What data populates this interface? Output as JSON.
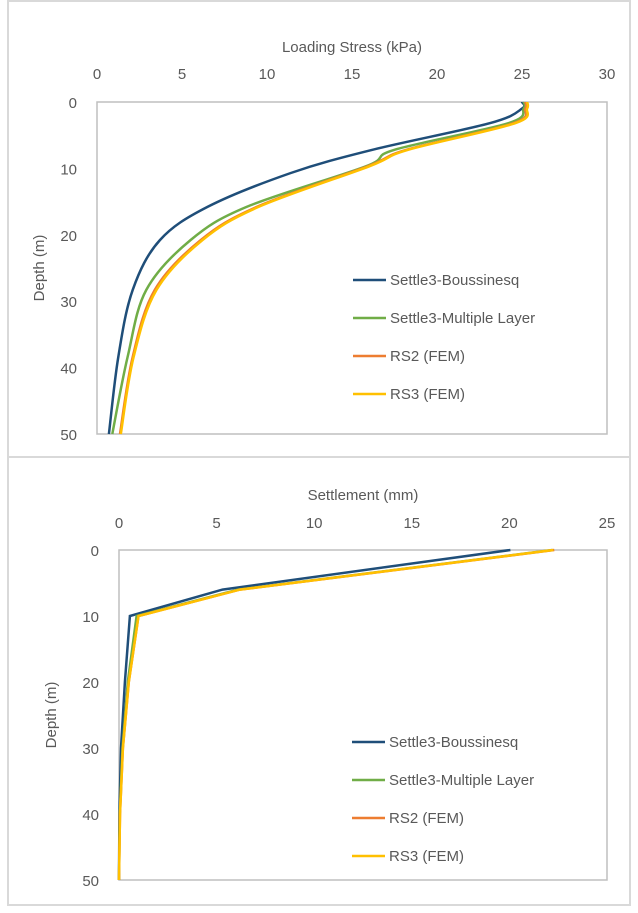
{
  "chart_data": [
    {
      "type": "line",
      "xlabel": "Loading Stress (kPa)",
      "ylabel": "Depth (m)",
      "xlim": [
        0,
        30
      ],
      "ylim": [
        0,
        50
      ],
      "x_axis_position": "top",
      "y_axis_reversed": true,
      "xticks": [
        0,
        5,
        10,
        15,
        20,
        25,
        30
      ],
      "yticks": [
        0,
        10,
        20,
        30,
        40,
        50
      ],
      "grid": false,
      "legend_position": "bottom-right",
      "series": [
        {
          "name": "Settle3-Boussinesq",
          "color": "#1f4e79",
          "points": [
            [
              25.0,
              0
            ],
            [
              25.0,
              1
            ],
            [
              23.1,
              3.2
            ],
            [
              16.2,
              7.2
            ],
            [
              11.4,
              10.7
            ],
            [
              6.5,
              15.8
            ],
            [
              3.7,
              20.8
            ],
            [
              2.1,
              28.3
            ],
            [
              1.25,
              38.4
            ],
            [
              0.7,
              50
            ]
          ]
        },
        {
          "name": "Settle3-Multiple Layer",
          "color": "#70ad47",
          "points": [
            [
              25.1,
              0
            ],
            [
              25.1,
              1
            ],
            [
              24.2,
              3.2
            ],
            [
              17.5,
              7.2
            ],
            [
              15.8,
              9.7
            ],
            [
              8.8,
              15.8
            ],
            [
              5.5,
              20.8
            ],
            [
              2.9,
              28.3
            ],
            [
              1.8,
              38.4
            ],
            [
              0.9,
              50
            ]
          ]
        },
        {
          "name": "RS2 (FEM)",
          "color": "#ed7d31",
          "points": [
            [
              25.2,
              0
            ],
            [
              25.2,
              1
            ],
            [
              24.5,
              3.2
            ],
            [
              18.2,
              7.2
            ],
            [
              15.9,
              9.7
            ],
            [
              9.4,
              15.8
            ],
            [
              6.1,
              20.8
            ],
            [
              3.4,
              28.3
            ],
            [
              2.1,
              38.4
            ],
            [
              1.35,
              50
            ]
          ]
        },
        {
          "name": "RS3 (FEM)",
          "color": "#ffc000",
          "points": [
            [
              25.3,
              0
            ],
            [
              25.3,
              1
            ],
            [
              24.6,
              3.2
            ],
            [
              18.3,
              7.2
            ],
            [
              16.0,
              9.7
            ],
            [
              9.5,
              15.8
            ],
            [
              6.2,
              20.8
            ],
            [
              3.5,
              28.3
            ],
            [
              2.15,
              38.4
            ],
            [
              1.4,
              50
            ]
          ]
        }
      ]
    },
    {
      "type": "line",
      "xlabel": "Settlement (mm)",
      "ylabel": "Depth (m)",
      "xlim": [
        0,
        25
      ],
      "ylim": [
        0,
        50
      ],
      "x_axis_position": "top",
      "y_axis_reversed": true,
      "xticks": [
        0,
        5,
        10,
        15,
        20,
        25
      ],
      "yticks": [
        0,
        10,
        20,
        30,
        40,
        50
      ],
      "grid": false,
      "legend_position": "bottom-right",
      "series": [
        {
          "name": "Settle3-Boussinesq",
          "color": "#1f4e79",
          "points": [
            [
              20.05,
              0
            ],
            [
              5.3,
              6
            ],
            [
              0.56,
              10
            ],
            [
              0.3,
              20
            ],
            [
              0.1,
              30
            ],
            [
              0.02,
              40
            ],
            [
              0,
              50
            ]
          ]
        },
        {
          "name": "Settle3-Multiple Layer",
          "color": "#70ad47",
          "points": [
            [
              22.2,
              0
            ],
            [
              6.1,
              6
            ],
            [
              0.9,
              10
            ],
            [
              0.45,
              20
            ],
            [
              0.18,
              30
            ],
            [
              0.04,
              40
            ],
            [
              0,
              50
            ]
          ]
        },
        {
          "name": "RS2 (FEM)",
          "color": "#ed7d31",
          "points": [
            [
              22.3,
              0
            ],
            [
              6.2,
              6
            ],
            [
              1.0,
              10
            ],
            [
              0.5,
              20
            ],
            [
              0.2,
              30
            ],
            [
              0.05,
              40
            ],
            [
              0,
              50
            ]
          ]
        },
        {
          "name": "RS3 (FEM)",
          "color": "#ffc000",
          "points": [
            [
              22.25,
              0
            ],
            [
              6.2,
              6
            ],
            [
              1.0,
              10
            ],
            [
              0.5,
              20
            ],
            [
              0.2,
              30
            ],
            [
              0.05,
              40
            ],
            [
              0,
              50
            ]
          ]
        }
      ]
    }
  ]
}
